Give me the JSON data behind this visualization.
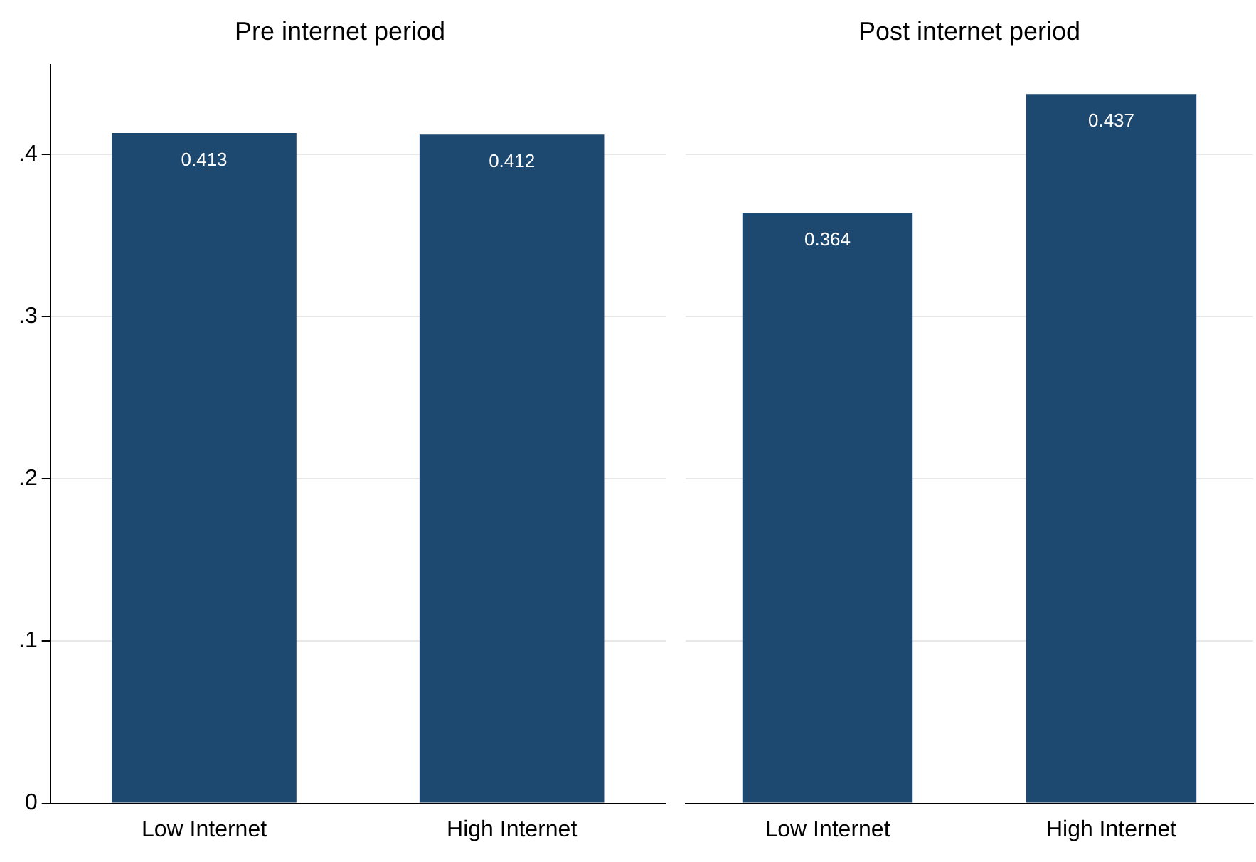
{
  "chart_data": [
    {
      "type": "bar",
      "title": "Pre internet period",
      "categories": [
        "Low Internet",
        "High Internet"
      ],
      "values": [
        0.413,
        0.412
      ],
      "color": "#1d4870",
      "ylim": [
        0,
        0.455
      ],
      "yticks": [
        {
          "value": 0,
          "label": "0"
        },
        {
          "value": 0.1,
          "label": ".1"
        },
        {
          "value": 0.2,
          "label": ".2"
        },
        {
          "value": 0.3,
          "label": ".3"
        },
        {
          "value": 0.4,
          "label": ".4"
        }
      ],
      "grid": "y",
      "data_labels": true
    },
    {
      "type": "bar",
      "title": "Post internet period",
      "categories": [
        "Low Internet",
        "High Internet"
      ],
      "values": [
        0.364,
        0.437
      ],
      "color": "#1d4870",
      "yticks": [
        {
          "value": 0,
          "label": null
        },
        {
          "value": 0.1,
          "label": null
        },
        {
          "value": 0.2,
          "label": null
        },
        {
          "value": 0.3,
          "label": null
        },
        {
          "value": 0.4,
          "label": null
        }
      ],
      "grid": "y",
      "data_labels": true,
      "tick_labels": "x"
    }
  ]
}
